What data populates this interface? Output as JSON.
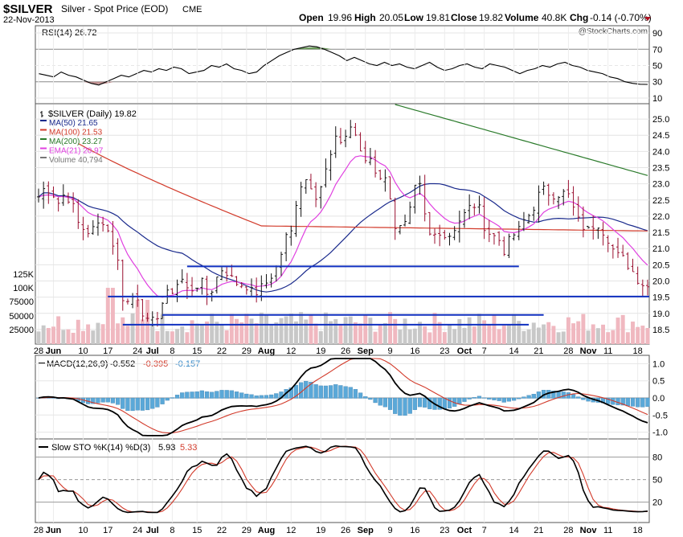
{
  "header": {
    "symbol": "$SILVER",
    "name": "Silver - Spot Price (EOD)",
    "exchange": "CME",
    "date": "22-Nov-2013",
    "open_label": "Open",
    "open": "19.96",
    "high_label": "High",
    "high": "20.05",
    "low_label": "Low",
    "low": "19.81",
    "close_label": "Close",
    "close": "19.82",
    "volume_label": "Volume",
    "volume": "40.8K",
    "chg_label": "Chg",
    "chg": "-0.14 (-0.70%)",
    "watermark": "@StockCharts.com"
  },
  "colors": {
    "ma50": "#1a2a8c",
    "ma100": "#d23a2a",
    "ma200": "#2a7a2a",
    "ema21": "#e040e0",
    "bar_up": "#111111",
    "bar_down": "#9a1030",
    "hline": "#1030c0",
    "vol_up": "#c8c8c8",
    "vol_down": "#f0b8c0",
    "macd_hist": "#5aa8d8",
    "rsi_fill_over": "#6a9a5a",
    "rsi_fill_under": "#c09090"
  },
  "rsi": {
    "legend": "RSI(14) 26.72",
    "ticks": [
      "90",
      "70",
      "50",
      "30",
      "10"
    ],
    "values": [
      40,
      38,
      36,
      42,
      38,
      36,
      32,
      28,
      26,
      30,
      34,
      38,
      36,
      40,
      44,
      42,
      46,
      44,
      48,
      46,
      40,
      42,
      44,
      50,
      48,
      52,
      46,
      44,
      40,
      42,
      50,
      56,
      62,
      66,
      70,
      72,
      74,
      73,
      70,
      66,
      62,
      56,
      60,
      56,
      52,
      50,
      54,
      50,
      52,
      48,
      46,
      50,
      54,
      48,
      44,
      46,
      50,
      52,
      48,
      46,
      52,
      50,
      48,
      44,
      40,
      44,
      46,
      50,
      48,
      52,
      54,
      50,
      48,
      44,
      42,
      40,
      36,
      34,
      30,
      28,
      27,
      26.72
    ]
  },
  "price": {
    "legend_main": "$SILVER (Daily) 19.82",
    "legend": [
      {
        "label": "MA(50) 21.65",
        "color": "#1a2a8c"
      },
      {
        "label": "MA(100) 21.53",
        "color": "#d23a2a"
      },
      {
        "label": "MA(200) 23.27",
        "color": "#2a7a2a"
      },
      {
        "label": "EMA(21) 20.97",
        "color": "#e040e0"
      },
      {
        "label": "Volume 40,794",
        "color": "#777777"
      }
    ],
    "ticks": [
      "25.0",
      "24.5",
      "24.0",
      "23.5",
      "23.0",
      "22.5",
      "22.0",
      "21.5",
      "21.0",
      "20.5",
      "20.0",
      "19.5",
      "19.0",
      "18.5"
    ],
    "ylim": [
      18.1,
      25.3
    ],
    "closes": [
      22.6,
      22.9,
      22.8,
      22.4,
      22.7,
      22.5,
      21.8,
      21.6,
      21.5,
      21.7,
      21.9,
      21.4,
      20.9,
      19.5,
      19.3,
      19.7,
      19.1,
      18.6,
      18.8,
      19.3,
      19.6,
      19.8,
      20.1,
      19.7,
      19.8,
      20.0,
      19.6,
      19.8,
      20.4,
      20.3,
      20.0,
      19.9,
      19.9,
      19.6,
      19.7,
      19.9,
      20.2,
      20.5,
      21.3,
      21.5,
      22.8,
      23.2,
      23.0,
      22.6,
      23.2,
      23.8,
      24.4,
      24.3,
      24.8,
      24.5,
      23.6,
      23.9,
      23.4,
      23.2,
      23.0,
      21.7,
      21.6,
      21.8,
      22.8,
      22.9,
      21.4,
      21.4,
      21.6,
      21.3,
      21.6,
      21.9,
      22.1,
      22.4,
      22.2,
      21.6,
      21.4,
      21.3,
      20.9,
      21.4,
      21.5,
      21.9,
      22.1,
      22.6,
      22.8,
      22.7,
      22.7,
      22.7,
      22.6,
      21.9,
      21.7,
      21.5,
      21.9,
      21.6,
      21.3,
      20.8,
      20.7,
      20.5,
      20.2,
      19.96,
      19.82
    ],
    "hlines": [
      {
        "y": 20.45,
        "x0": 28,
        "x1": 89
      },
      {
        "y": 19.52,
        "x0": 13,
        "x1": 95
      },
      {
        "y": 18.95,
        "x0": 23,
        "x1": 94
      },
      {
        "y": 18.65,
        "x0": 16,
        "x1": 91
      }
    ],
    "volume_ticks": [
      "125K",
      "100K",
      "75000",
      "50000",
      "25000"
    ]
  },
  "x_axis": {
    "labels": [
      {
        "i": 0,
        "t": "28"
      },
      {
        "i": 3,
        "t": "Jun"
      },
      {
        "i": 8,
        "t": "10"
      },
      {
        "i": 13,
        "t": "17"
      },
      {
        "i": 18,
        "t": "24"
      },
      {
        "i": 21,
        "t": "Jul"
      },
      {
        "i": 25,
        "t": "8"
      },
      {
        "i": 29,
        "t": "15"
      },
      {
        "i": 34,
        "t": "22"
      },
      {
        "i": 39,
        "t": "29"
      },
      {
        "i": 42,
        "t": "Aug"
      },
      {
        "i": 47,
        "t": "12"
      },
      {
        "i": 52,
        "t": "19"
      },
      {
        "i": 57,
        "t": "26"
      },
      {
        "i": 61,
        "t": "Sep"
      },
      {
        "i": 65,
        "t": "9"
      },
      {
        "i": 70,
        "t": "16"
      },
      {
        "i": 75,
        "t": "23"
      },
      {
        "i": 79,
        "t": "Oct"
      },
      {
        "i": 83,
        "t": "7"
      },
      {
        "i": 88,
        "t": "14"
      },
      {
        "i": 93,
        "t": "21"
      },
      {
        "i": 98,
        "t": "28"
      },
      {
        "i": 102,
        "t": "Nov"
      },
      {
        "i": 106,
        "t": "11"
      },
      {
        "i": 111,
        "t": "18"
      }
    ]
  },
  "macd": {
    "legend_a": "MACD(12,26,9)",
    "legend_b": "-0.552",
    "legend_c": "-0.395",
    "legend_d": "-0.157",
    "ticks": [
      "1.0",
      "0.5",
      "0.0",
      "-0.5",
      "-1.0"
    ]
  },
  "sto": {
    "legend_a": "Slow STO %K(14) %D(3)",
    "legend_b": "5.93",
    "legend_c": "5.33",
    "ticks": [
      "80",
      "50",
      "20"
    ]
  }
}
